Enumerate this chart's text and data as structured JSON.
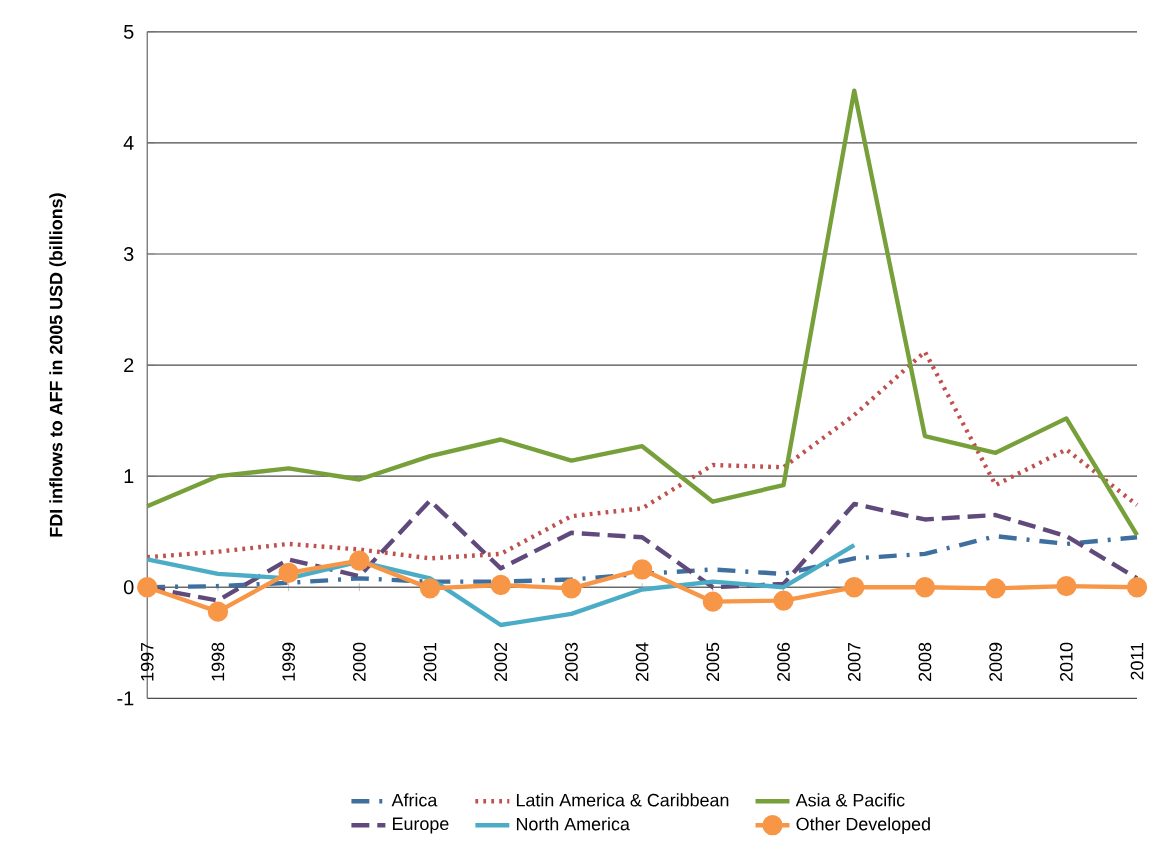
{
  "chart_data": {
    "type": "line",
    "ylabel": "FDI inflows to AFF in 2005 USD (billions)",
    "categories": [
      "1997",
      "1998",
      "1999",
      "2000",
      "2001",
      "2002",
      "2003",
      "2004",
      "2005",
      "2006",
      "2007",
      "2008",
      "2009",
      "2010",
      "2011"
    ],
    "ylim": [
      -1,
      5
    ],
    "yticks": [
      -1,
      0,
      1,
      2,
      3,
      4,
      5
    ],
    "grid": "y",
    "legend": "bottom",
    "series": [
      {
        "name": "Africa",
        "color": "#3f6f9f",
        "line_style": "dashdot",
        "values": [
          0.0,
          0.01,
          0.04,
          0.08,
          0.05,
          0.05,
          0.07,
          0.12,
          0.16,
          0.12,
          0.26,
          0.3,
          0.46,
          0.39,
          0.45
        ]
      },
      {
        "name": "Latin America & Caribbean",
        "color": "#c0504d",
        "line_style": "dotted",
        "values": [
          0.27,
          0.32,
          0.39,
          0.34,
          0.26,
          0.3,
          0.64,
          0.71,
          1.1,
          1.08,
          1.55,
          2.12,
          0.92,
          1.24,
          0.74
        ]
      },
      {
        "name": "Asia & Pacific",
        "color": "#77a03a",
        "line_style": "solid",
        "values": [
          0.73,
          1.0,
          1.07,
          0.97,
          1.18,
          1.33,
          1.14,
          1.27,
          0.77,
          0.92,
          4.47,
          1.36,
          1.21,
          1.52,
          0.47
        ]
      },
      {
        "name": "Europe",
        "color": "#604a7b",
        "line_style": "dashed",
        "values": [
          0.0,
          -0.12,
          0.25,
          0.1,
          0.78,
          0.17,
          0.49,
          0.45,
          0.0,
          0.03,
          0.75,
          0.61,
          0.65,
          0.46,
          0.08
        ]
      },
      {
        "name": "North America",
        "color": "#4bacc6",
        "line_style": "solid",
        "values": [
          0.25,
          0.12,
          0.08,
          0.23,
          0.08,
          -0.34,
          -0.24,
          -0.02,
          0.05,
          0.0,
          0.38,
          null,
          null,
          null,
          null
        ]
      },
      {
        "name": "Other Developed",
        "color": "#f79646",
        "line_style": "solid",
        "marker": "circle",
        "values": [
          0.0,
          -0.22,
          0.13,
          0.24,
          -0.01,
          0.02,
          -0.01,
          0.16,
          -0.13,
          -0.12,
          0.0,
          0.0,
          -0.01,
          0.01,
          0.0
        ]
      }
    ]
  }
}
